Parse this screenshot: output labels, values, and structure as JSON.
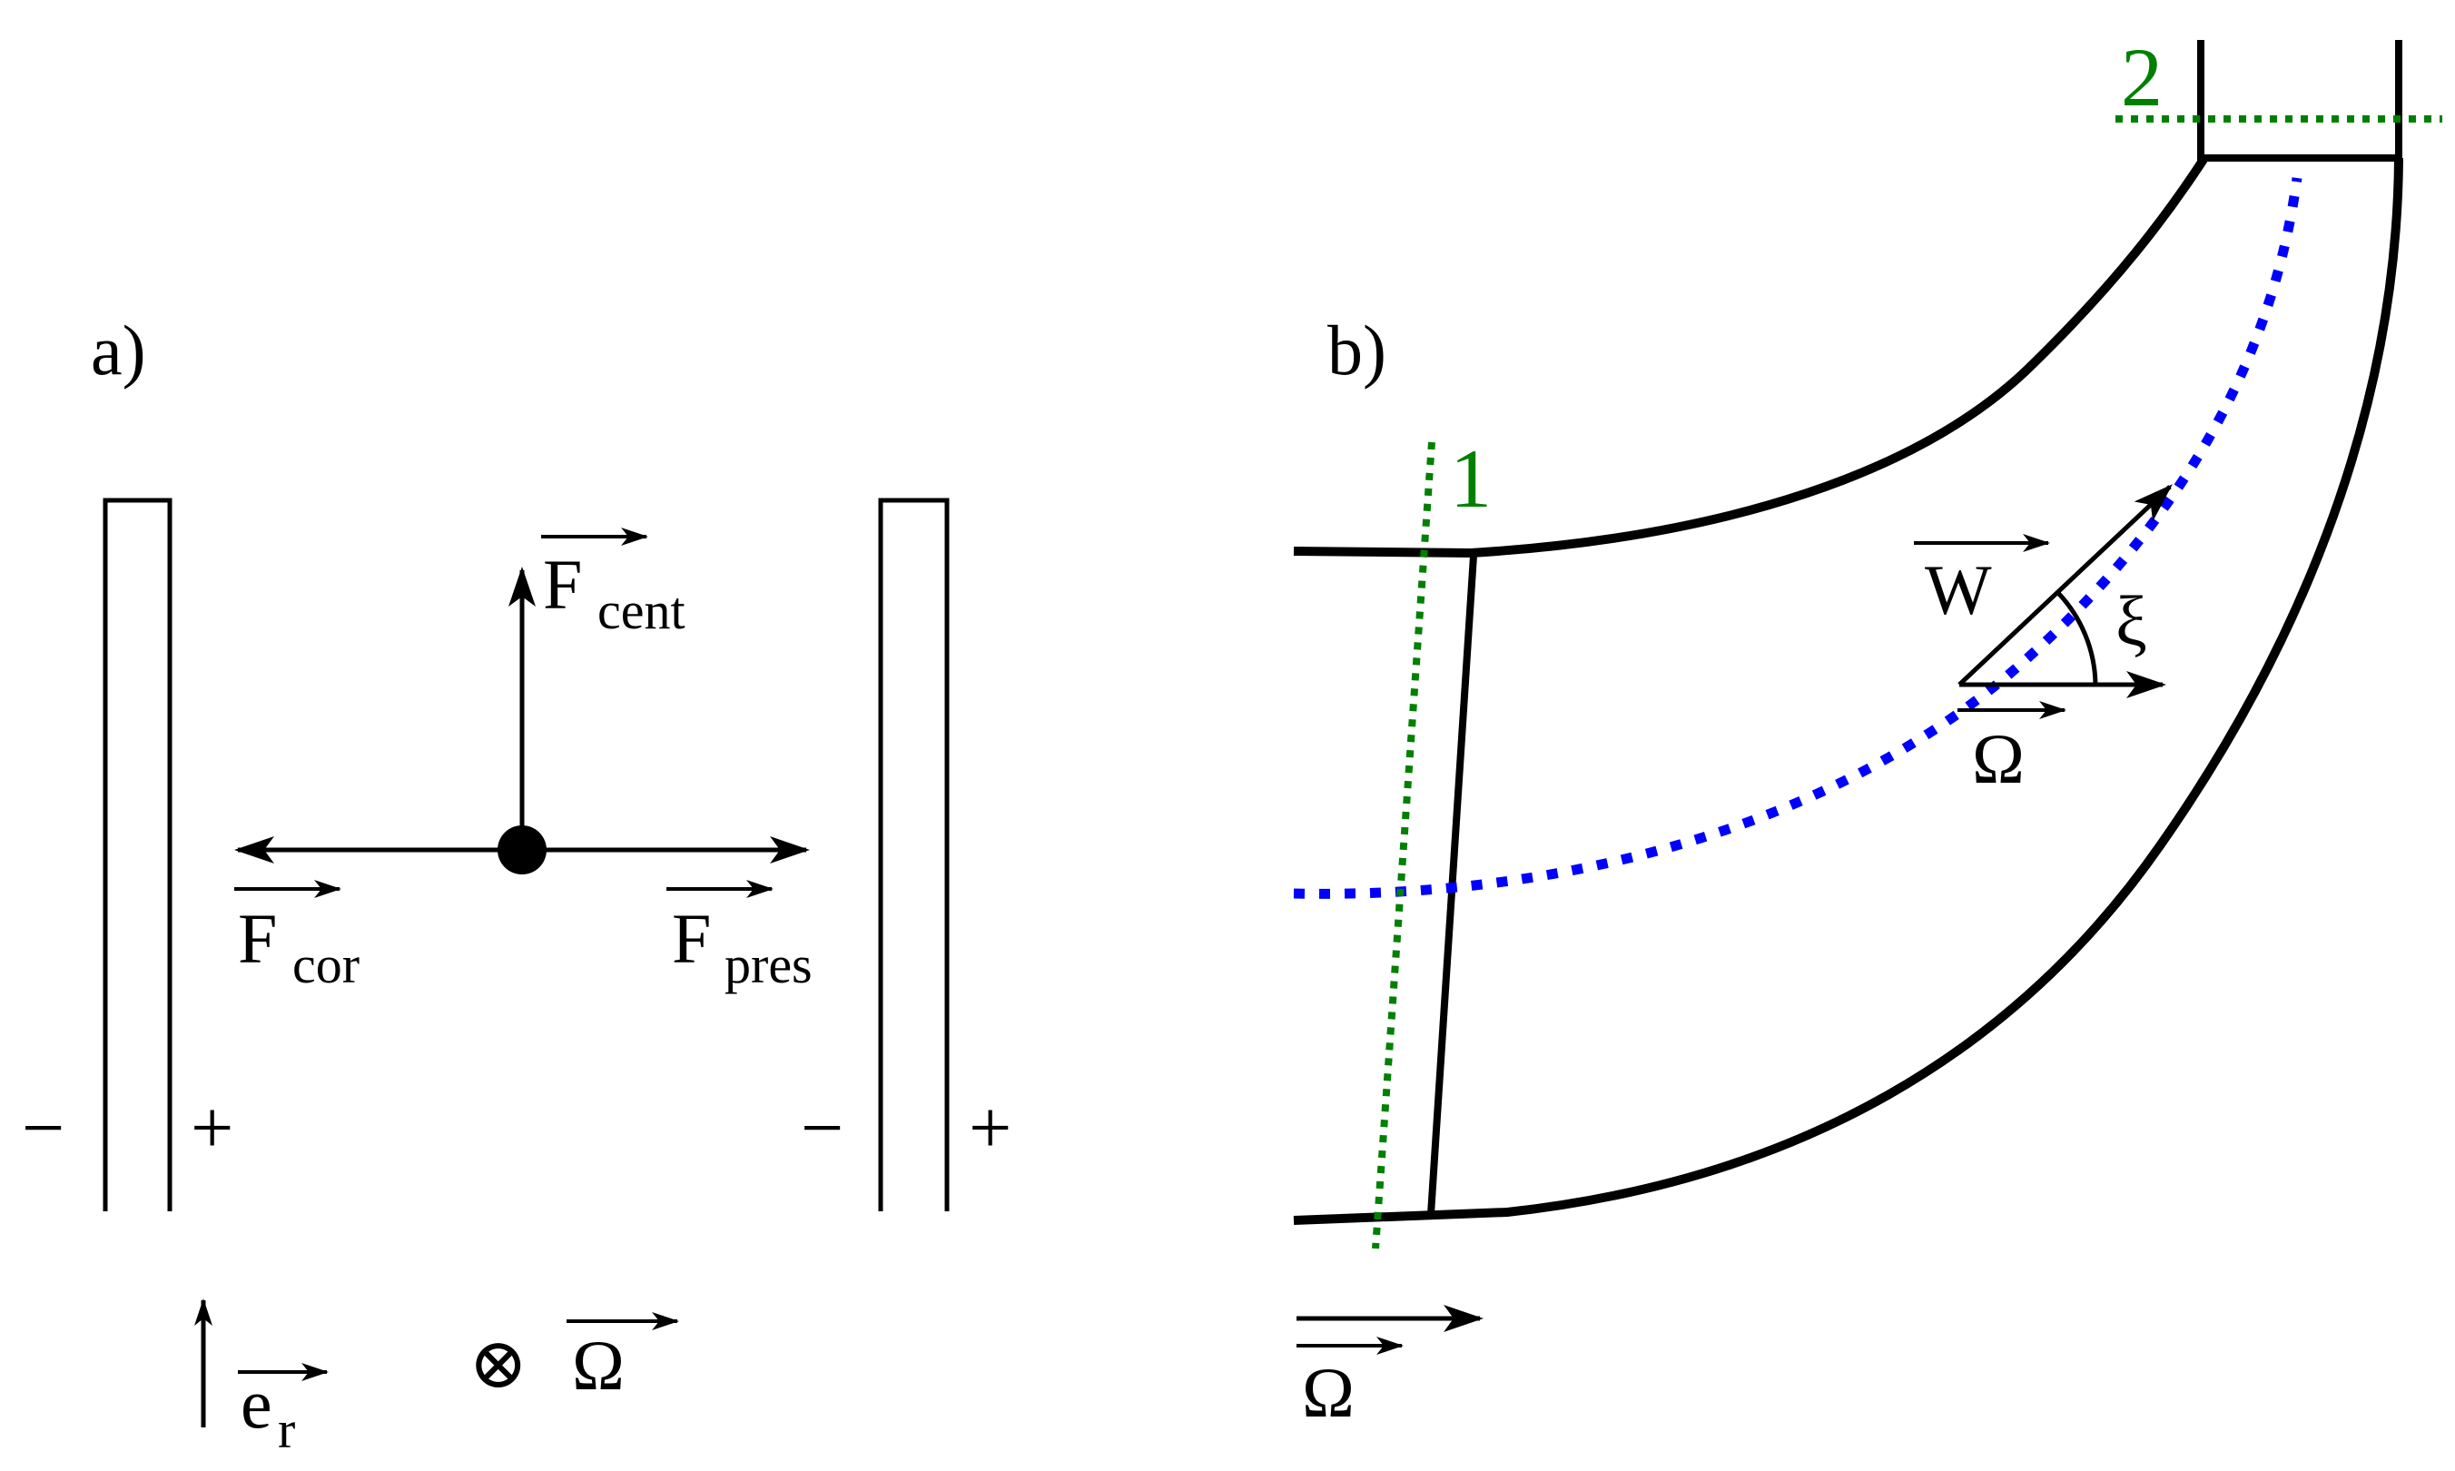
{
  "panel_a": {
    "label": "a)",
    "forces": {
      "cent": {
        "main": "F",
        "sub": "cent"
      },
      "cor": {
        "main": "F",
        "sub": "cor"
      },
      "pres": {
        "main": "F",
        "sub": "pres"
      }
    },
    "signs": {
      "minus": "−",
      "plus": "+"
    },
    "basis": {
      "main": "e",
      "sub": "r"
    },
    "rotation": {
      "otimes": "⊗",
      "omega": "Ω"
    }
  },
  "panel_b": {
    "label": "b)",
    "section_1": "1",
    "section_2": "2",
    "velocity": "W",
    "angle": "ξ",
    "omega": "Ω",
    "omega_bottom": "Ω"
  },
  "colors": {
    "stroke": "#000000",
    "section_lines": "#008000",
    "mean_line": "#0000ff"
  }
}
